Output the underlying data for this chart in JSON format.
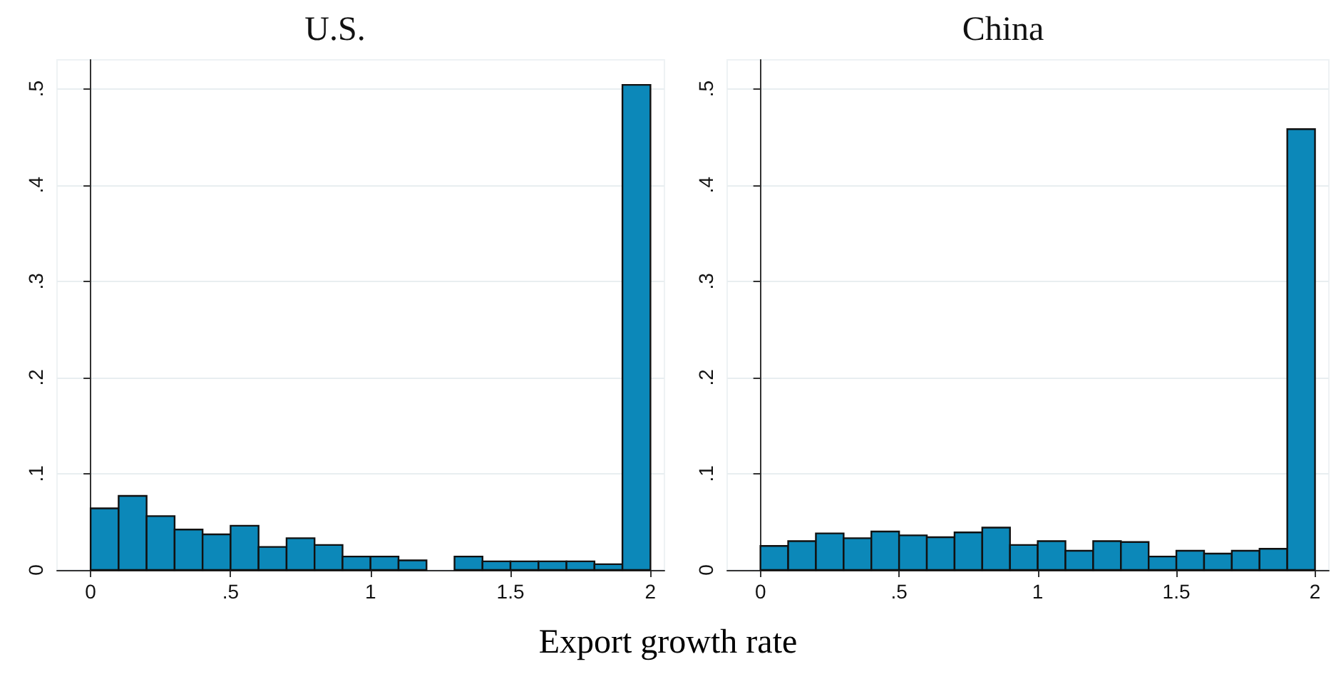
{
  "chart_data": [
    {
      "type": "histogram",
      "title": "U.S.",
      "xlabel": "Export growth rate",
      "color": "#0c88b9",
      "bins": [
        0,
        0.1,
        0.2,
        0.3,
        0.4,
        0.5,
        0.6,
        0.7,
        0.8,
        0.9,
        1,
        1.1,
        1.2,
        1.3,
        1.4,
        1.5,
        1.6,
        1.7,
        1.8,
        1.9,
        2
      ],
      "values": [
        0.064,
        0.077,
        0.056,
        0.042,
        0.037,
        0.046,
        0.024,
        0.033,
        0.026,
        0.014,
        0.014,
        0.01,
        0,
        0.014,
        0.009,
        0.009,
        0.009,
        0.009,
        0.006,
        0.504
      ],
      "xlim": [
        -0.12,
        2.05
      ],
      "xticks": [
        0,
        {
          "value": 0.5,
          "label": ".5"
        },
        1,
        1.5,
        2
      ],
      "ylim": [
        0,
        0.53
      ],
      "yticks": [
        0,
        {
          "value": 0.1,
          "label": ".1"
        },
        {
          "value": 0.2,
          "label": ".2"
        },
        {
          "value": 0.3,
          "label": ".3"
        },
        {
          "value": 0.4,
          "label": ".4"
        },
        {
          "value": 0.5,
          "label": ".5"
        }
      ],
      "grid": "y"
    },
    {
      "type": "histogram",
      "title": "China",
      "color": "#0c88b9",
      "bins": [
        0,
        0.1,
        0.2,
        0.3,
        0.4,
        0.5,
        0.6,
        0.7,
        0.8,
        0.9,
        1,
        1.1,
        1.2,
        1.3,
        1.4,
        1.5,
        1.6,
        1.7,
        1.8,
        1.9,
        2
      ],
      "values": [
        0.025,
        0.03,
        0.038,
        0.033,
        0.04,
        0.036,
        0.034,
        0.039,
        0.044,
        0.026,
        0.03,
        0.02,
        0.03,
        0.029,
        0.014,
        0.02,
        0.017,
        0.02,
        0.022,
        0.458
      ],
      "xlim": [
        -0.12,
        2.05
      ],
      "xticks": [
        0,
        {
          "value": 0.5,
          "label": ".5"
        },
        1,
        1.5,
        2
      ],
      "ylim": [
        0,
        0.53
      ],
      "yticks": [
        0,
        {
          "value": 0.1,
          "label": ".1"
        },
        {
          "value": 0.2,
          "label": ".2"
        },
        {
          "value": 0.3,
          "label": ".3"
        },
        {
          "value": 0.4,
          "label": ".4"
        },
        {
          "value": 0.5,
          "label": ".5"
        }
      ],
      "grid": "y"
    }
  ]
}
